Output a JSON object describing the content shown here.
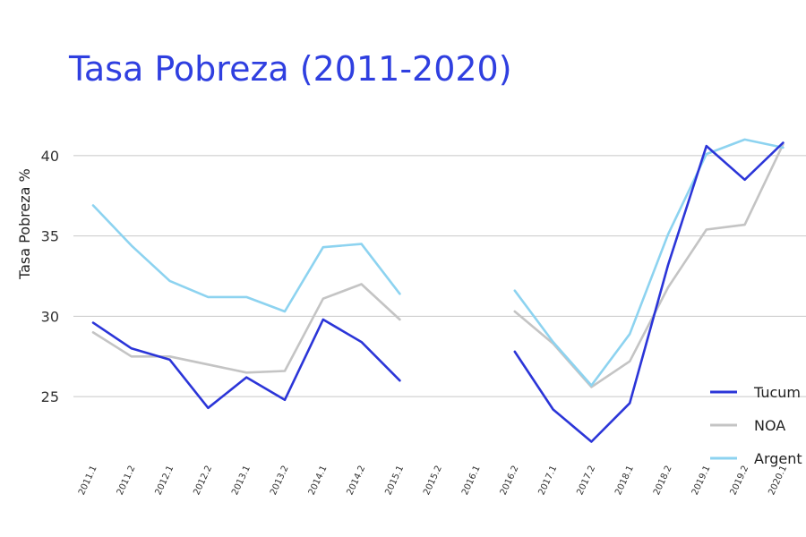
{
  "chart_data": {
    "type": "line",
    "title": "Tasa Pobreza (2011-2020)",
    "ylabel": "Tasa Pobreza %",
    "xlabel": "",
    "ylim": [
      21,
      43
    ],
    "yticks": [
      25,
      30,
      35,
      40
    ],
    "grid": true,
    "legend_position": "bottom-right",
    "categories": [
      "2011.1",
      "2011.2",
      "2012.1",
      "2012.2",
      "2013.1",
      "2013.2",
      "2014.1",
      "2014.2",
      "2015.1",
      "2015.2",
      "2016.1",
      "2016.2",
      "2017.1",
      "2017.2",
      "2018.1",
      "2018.2",
      "2019.1",
      "2019.2",
      "2020.1"
    ],
    "series": [
      {
        "name": "Tucum",
        "color": "#2b35d8",
        "values": [
          29.6,
          28.0,
          27.3,
          24.3,
          26.2,
          24.8,
          29.8,
          28.4,
          26.0,
          null,
          null,
          27.8,
          24.2,
          22.2,
          24.6,
          33.2,
          40.6,
          38.5,
          40.8
        ]
      },
      {
        "name": "NOA",
        "color": "#c4c4c4",
        "values": [
          29.0,
          27.5,
          27.5,
          27.0,
          26.5,
          26.6,
          31.1,
          32.0,
          29.8,
          null,
          null,
          30.3,
          28.3,
          25.6,
          27.2,
          31.8,
          35.4,
          35.7,
          40.7
        ]
      },
      {
        "name": "Argent",
        "color": "#8dd3f0",
        "values": [
          36.9,
          34.4,
          32.2,
          31.2,
          31.2,
          30.3,
          34.3,
          34.5,
          31.4,
          null,
          null,
          31.6,
          28.4,
          25.7,
          28.9,
          35.1,
          40.1,
          41.0,
          40.5
        ]
      }
    ]
  }
}
